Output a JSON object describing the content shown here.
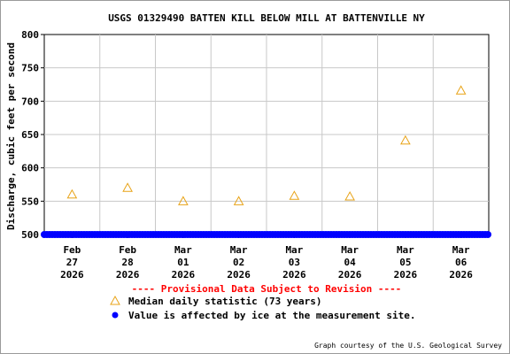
{
  "chart_data": {
    "type": "scatter",
    "title": "USGS 01329490 BATTEN KILL BELOW MILL AT BATTENVILLE NY",
    "ylabel": "Discharge, cubic feet per second",
    "ylim": [
      500,
      800
    ],
    "yticks": [
      500,
      550,
      600,
      650,
      700,
      750,
      800
    ],
    "grid": true,
    "categories": [
      {
        "month": "Feb",
        "day": "27",
        "year": "2026"
      },
      {
        "month": "Feb",
        "day": "28",
        "year": "2026"
      },
      {
        "month": "Mar",
        "day": "01",
        "year": "2026"
      },
      {
        "month": "Mar",
        "day": "02",
        "year": "2026"
      },
      {
        "month": "Mar",
        "day": "03",
        "year": "2026"
      },
      {
        "month": "Mar",
        "day": "04",
        "year": "2026"
      },
      {
        "month": "Mar",
        "day": "05",
        "year": "2026"
      },
      {
        "month": "Mar",
        "day": "06",
        "year": "2026"
      }
    ],
    "series": [
      {
        "name": "Median daily statistic (73 years)",
        "marker": "triangle",
        "color": "#e8a317",
        "values": [
          560,
          570,
          550,
          550,
          558,
          557,
          641,
          716
        ]
      },
      {
        "name": "Value is affected by ice at the measurement site.",
        "marker": "dot",
        "color": "#0000ff",
        "values": [
          500,
          500,
          500,
          500,
          500,
          500,
          500,
          500
        ]
      }
    ],
    "provisional_note": "---- Provisional Data Subject to Revision ----",
    "credit": "Graph courtesy of the U.S. Geological Survey"
  }
}
